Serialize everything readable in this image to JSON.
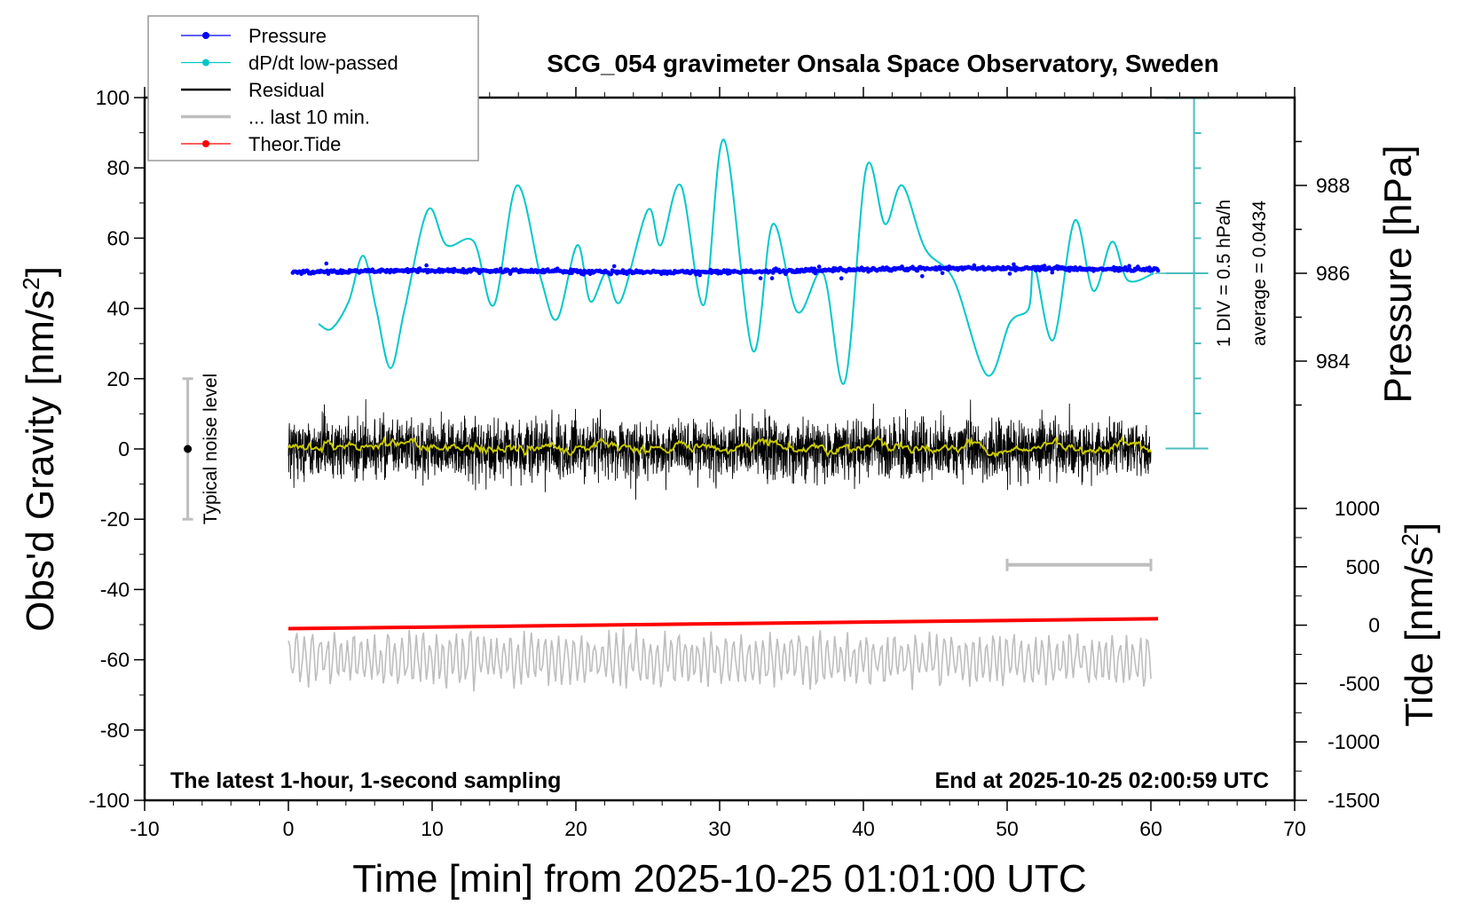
{
  "chart_data": {
    "type": "line",
    "title": "SCG_054 gravimeter Onsala Space Observatory, Sweden",
    "xlabel": "Time [min] from 2025-10-25 01:01:00 UTC",
    "ylabel": "Obs'd Gravity [nm/s",
    "ylabel_sup": "2",
    "ylabel_close": "]",
    "y2label": "Pressure [hPa]",
    "y3label": "Tide [nm/s",
    "y3label_sup": "2",
    "y3label_close": "]",
    "xlim": [
      -10,
      70
    ],
    "ylim": [
      -100,
      100
    ],
    "y2lim": [
      983.8,
      988.0
    ],
    "y3lim": [
      -1500,
      1000
    ],
    "x_ticks": [
      "-10",
      "0",
      "10",
      "20",
      "30",
      "40",
      "50",
      "60",
      "70"
    ],
    "y_ticks": [
      "100",
      "80",
      "60",
      "40",
      "20",
      "0",
      "-20",
      "-40",
      "-60",
      "-80",
      "-100"
    ],
    "y2_ticks": [
      "988",
      "986",
      "984"
    ],
    "y3_ticks": [
      "1000",
      "500",
      "0",
      "-500",
      "-1000",
      "-1500"
    ],
    "legend": {
      "placement": "top-left",
      "entries": [
        {
          "label": "Pressure",
          "color": "#0000ff",
          "marker": true
        },
        {
          "label": "dP/dt low-passed",
          "color": "#00c8c8",
          "marker": true
        },
        {
          "label": "Residual",
          "color": "#000000",
          "marker": false
        },
        {
          "label": "... last 10 min.",
          "color": "#bebebe",
          "marker": false
        },
        {
          "label": "Theor.Tide",
          "color": "#ff0000",
          "marker": true
        }
      ]
    },
    "annotations": {
      "bottom_left": "The latest 1-hour, 1-second sampling",
      "bottom_right": "End at 2025-10-25 02:00:59 UTC",
      "noise_label": "Typical noise level",
      "dpdt_scale": "1 DIV = 0.5 hPa/h",
      "dpdt_average": "average = 0.0434"
    },
    "series": [
      {
        "name": "dP/dt low-passed",
        "units": "plot units (nm/s2 axis)",
        "color": "#00c8c8",
        "points": [
          [
            2.1,
            35.6
          ],
          [
            3.0,
            34.2
          ],
          [
            4.2,
            42
          ],
          [
            5.2,
            55
          ],
          [
            6.1,
            40
          ],
          [
            7.1,
            23
          ],
          [
            8.1,
            40
          ],
          [
            9.7,
            68
          ],
          [
            11.0,
            58
          ],
          [
            12.9,
            59
          ],
          [
            14.3,
            41
          ],
          [
            15.9,
            75
          ],
          [
            17.6,
            48
          ],
          [
            18.7,
            37
          ],
          [
            20.1,
            58
          ],
          [
            21.0,
            42
          ],
          [
            22.1,
            50
          ],
          [
            23.1,
            42
          ],
          [
            25.0,
            68
          ],
          [
            25.9,
            58
          ],
          [
            27.3,
            75
          ],
          [
            28.9,
            41
          ],
          [
            30.3,
            88
          ],
          [
            32.3,
            28
          ],
          [
            33.7,
            64
          ],
          [
            35.4,
            39
          ],
          [
            37.2,
            50
          ],
          [
            38.7,
            19
          ],
          [
            40.2,
            80
          ],
          [
            41.5,
            64
          ],
          [
            42.7,
            75
          ],
          [
            44.3,
            57
          ],
          [
            46.3,
            48
          ],
          [
            48.6,
            21
          ],
          [
            50.2,
            36
          ],
          [
            51.5,
            40
          ],
          [
            51.9,
            52
          ],
          [
            53.2,
            31
          ],
          [
            54.7,
            65
          ],
          [
            56.0,
            45
          ],
          [
            57.3,
            59
          ],
          [
            58.4,
            48
          ],
          [
            60.2,
            50
          ]
        ]
      },
      {
        "name": "Pressure",
        "units": "hPa",
        "color": "#0000ff",
        "start": 986.02,
        "end": 986.1,
        "scatter": 0.05,
        "range_min": [
          0.3,
          60.5
        ]
      },
      {
        "name": "Residual",
        "units": "nm/s2",
        "color": "#000000",
        "mean": 0,
        "amplitude": 7,
        "range_min": [
          0,
          60
        ]
      },
      {
        "name": "Residual running mean",
        "units": "nm/s2",
        "color": "#c8c800",
        "mean": 0.5,
        "amplitude": 1
      },
      {
        "name": "... last 10 min.",
        "units": "nm/s2 (offset -60)",
        "color": "#bebebe",
        "offset": -60,
        "amplitude": 7,
        "range_min": [
          0,
          60
        ]
      },
      {
        "name": "Theor.Tide",
        "units": "nm/s2",
        "color": "#ff0000",
        "start": -30,
        "end": 55,
        "range_min": [
          0,
          60.5
        ]
      }
    ],
    "last10_bar": {
      "from": 50,
      "to": 60,
      "level": -33
    },
    "noise_bar": {
      "x": -7,
      "low": -20,
      "high": 20,
      "center": 0
    },
    "dpdt_axis": {
      "x": 63,
      "zero_level_hPa": 986,
      "divisions_above": 5,
      "divisions_below": 5
    }
  }
}
